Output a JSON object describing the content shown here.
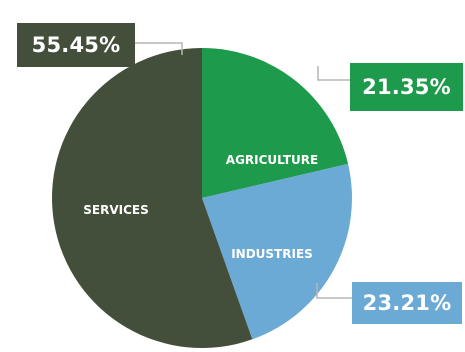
{
  "chart_data": {
    "type": "pie",
    "categories": [
      "AGRICULTURE",
      "INDUSTRIES",
      "SERVICES"
    ],
    "values": [
      21.35,
      23.21,
      55.45
    ],
    "value_labels": [
      "21.35%",
      "23.21%",
      "55.45%"
    ],
    "colors": [
      "#1e9a4c",
      "#6aaad4",
      "#434f3b"
    ],
    "title": "",
    "legend": "none"
  }
}
